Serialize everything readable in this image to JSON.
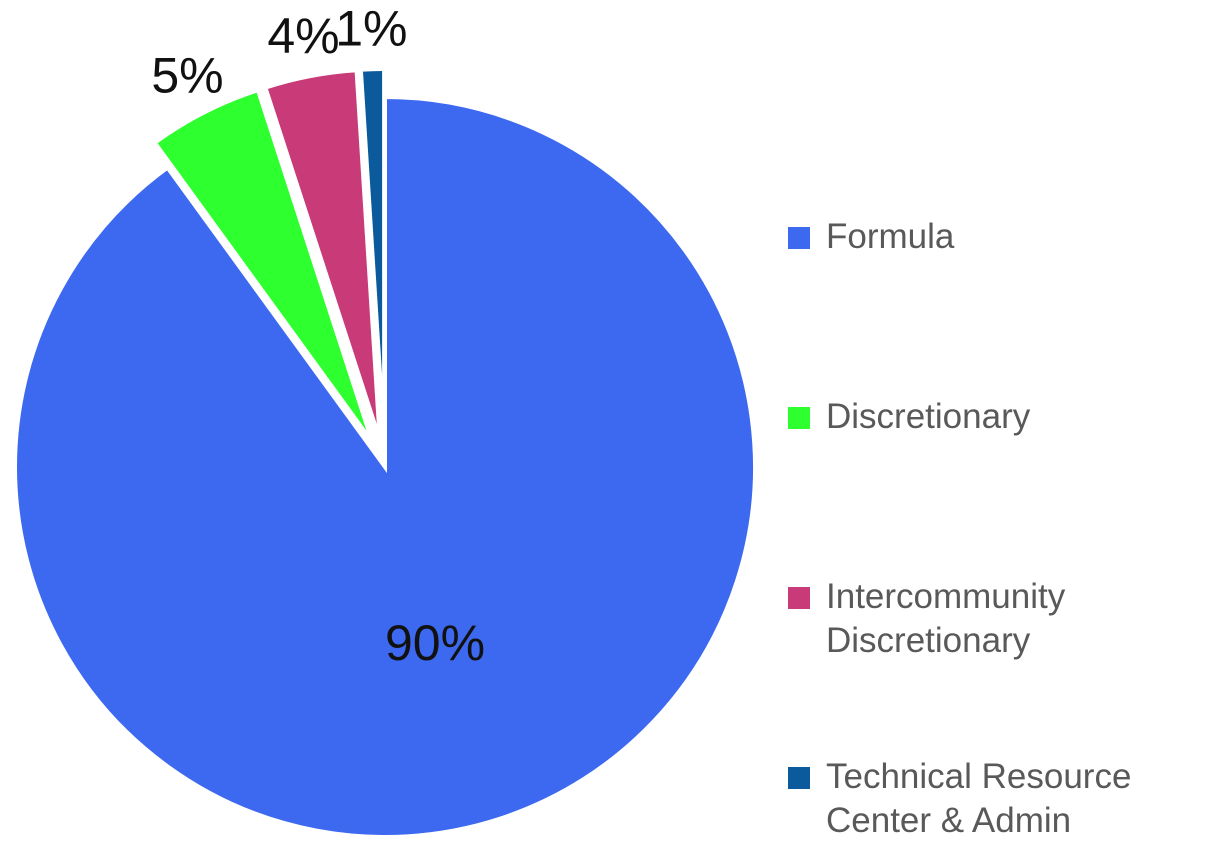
{
  "chart_data": {
    "type": "pie",
    "categories": [
      "Formula",
      "Discretionary",
      "Intercommunity Discretionary",
      "Technical Resource Center & Admin"
    ],
    "values": [
      90,
      5,
      4,
      1
    ],
    "value_labels": [
      "90%",
      "5%",
      "4%",
      "1%"
    ],
    "colors": [
      "#3d69f0",
      "#2eff2e",
      "#c83b78",
      "#0a5a9c"
    ],
    "legend": "right"
  }
}
